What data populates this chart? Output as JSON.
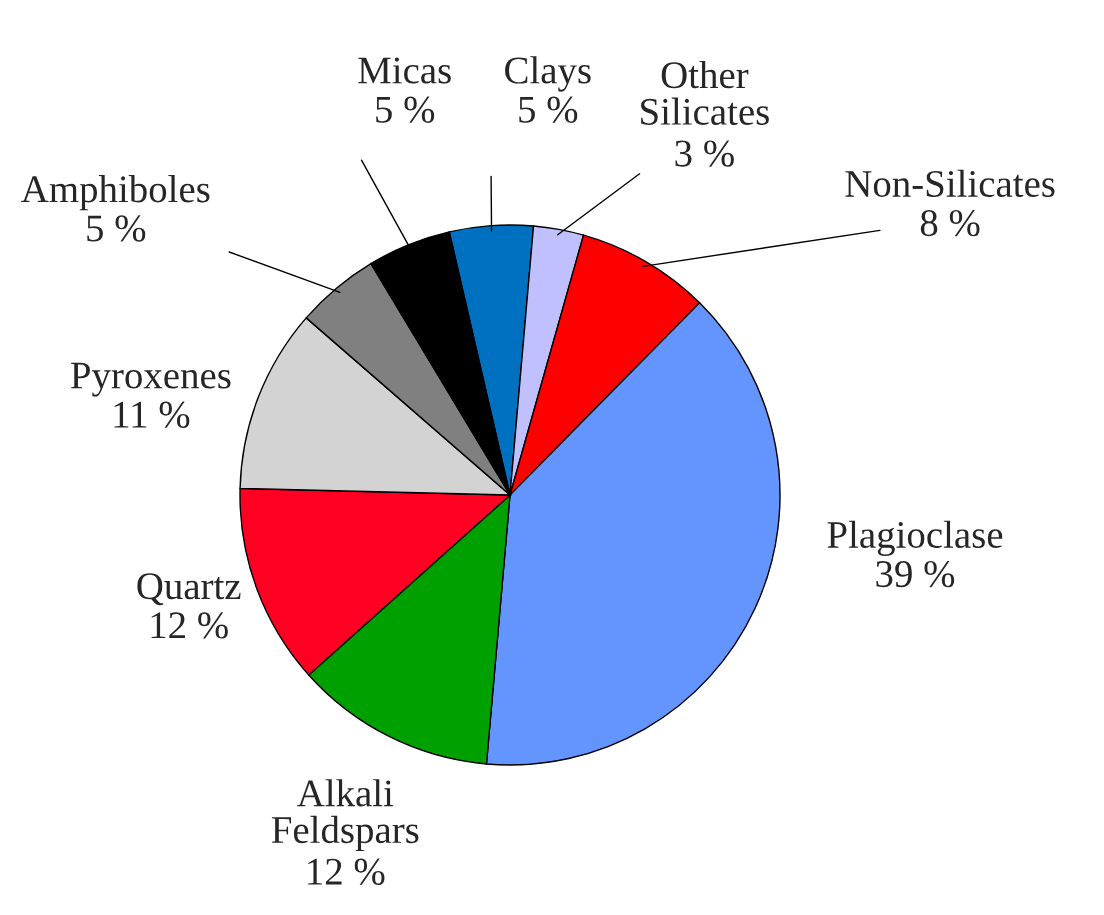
{
  "chart_data": {
    "type": "pie",
    "categories": [
      "Clays",
      "Other Silicates",
      "Non-Silicates",
      "Plagioclase",
      "Alkali Feldspars",
      "Quartz",
      "Pyroxenes",
      "Amphiboles",
      "Micas"
    ],
    "values": [
      5,
      3,
      8,
      39,
      12,
      12,
      11,
      5,
      5
    ],
    "colors": [
      "#0070c0",
      "#c0c0ff",
      "#ff0000",
      "#6495ff",
      "#00a000",
      "#ff0022",
      "#d3d3d3",
      "#808080",
      "#000000"
    ],
    "value_labels": [
      "5 %",
      "3 %",
      "8 %",
      "39 %",
      "12 %",
      "12 %",
      "11 %",
      "5 %",
      "5 %"
    ]
  }
}
